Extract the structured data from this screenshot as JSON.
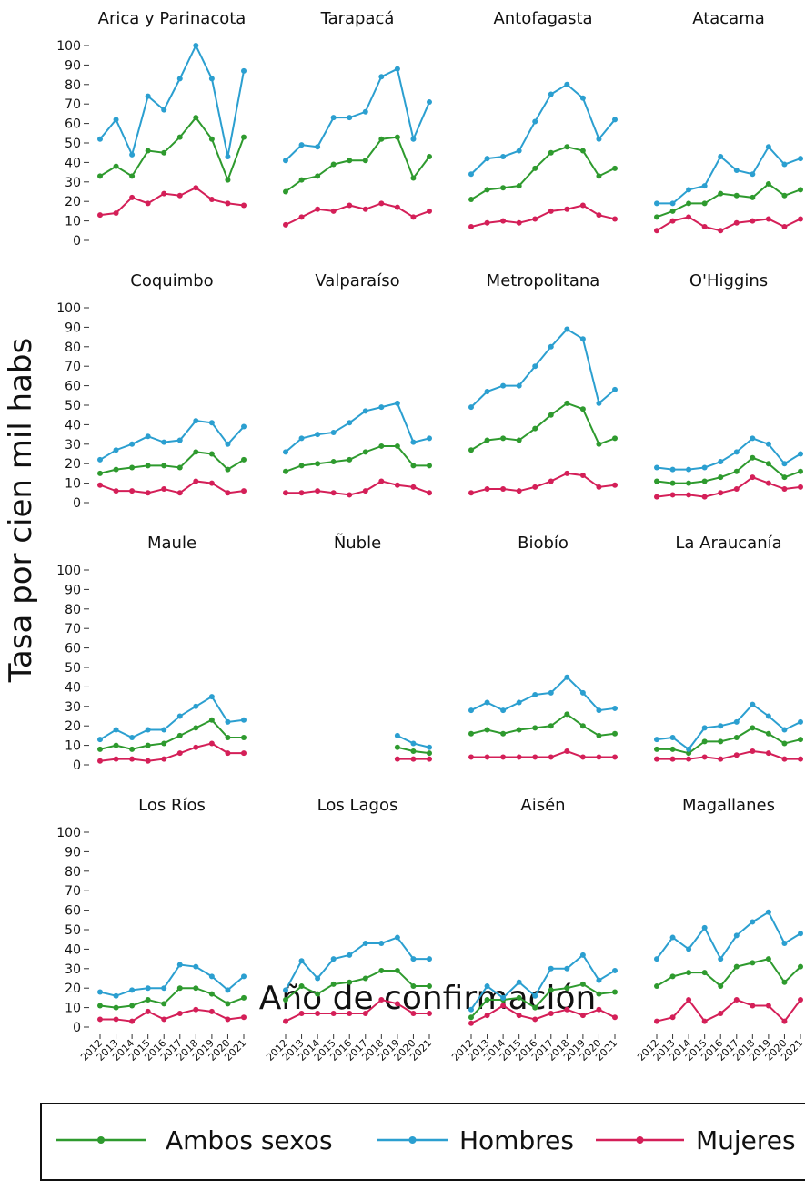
{
  "y_label": "Tasa por cien mil habs",
  "x_label": "Año de confirmación",
  "chart_data": [
    {
      "type": "line",
      "title": "Arica y Parinacota",
      "x": [
        2012,
        2013,
        2014,
        2015,
        2016,
        2017,
        2018,
        2019,
        2020,
        2021
      ],
      "ylim": [
        0,
        100
      ],
      "yticks": [
        0,
        10,
        20,
        30,
        40,
        50,
        60,
        70,
        80,
        90,
        100
      ],
      "series": [
        {
          "name": "Ambos sexos",
          "color": "#2e9a2e",
          "values": [
            33,
            38,
            33,
            46,
            45,
            53,
            63,
            52,
            31,
            53
          ]
        },
        {
          "name": "Hombres",
          "color": "#2b9fd0",
          "values": [
            52,
            62,
            44,
            74,
            67,
            83,
            100,
            83,
            43,
            87
          ]
        },
        {
          "name": "Mujeres",
          "color": "#d41f58",
          "values": [
            13,
            14,
            22,
            19,
            24,
            23,
            27,
            21,
            19,
            18
          ]
        }
      ]
    },
    {
      "type": "line",
      "title": "Tarapacá",
      "x": [
        2012,
        2013,
        2014,
        2015,
        2016,
        2017,
        2018,
        2019,
        2020,
        2021
      ],
      "ylim": [
        0,
        100
      ],
      "series": [
        {
          "name": "Ambos sexos",
          "color": "#2e9a2e",
          "values": [
            25,
            31,
            33,
            39,
            41,
            41,
            52,
            53,
            32,
            43
          ]
        },
        {
          "name": "Hombres",
          "color": "#2b9fd0",
          "values": [
            41,
            49,
            48,
            63,
            63,
            66,
            84,
            88,
            52,
            71
          ]
        },
        {
          "name": "Mujeres",
          "color": "#d41f58",
          "values": [
            8,
            12,
            16,
            15,
            18,
            16,
            19,
            17,
            12,
            15
          ]
        }
      ]
    },
    {
      "type": "line",
      "title": "Antofagasta",
      "x": [
        2012,
        2013,
        2014,
        2015,
        2016,
        2017,
        2018,
        2019,
        2020,
        2021
      ],
      "ylim": [
        0,
        100
      ],
      "series": [
        {
          "name": "Ambos sexos",
          "color": "#2e9a2e",
          "values": [
            21,
            26,
            27,
            28,
            37,
            45,
            48,
            46,
            33,
            37
          ]
        },
        {
          "name": "Hombres",
          "color": "#2b9fd0",
          "values": [
            34,
            42,
            43,
            46,
            61,
            75,
            80,
            73,
            52,
            62
          ]
        },
        {
          "name": "Mujeres",
          "color": "#d41f58",
          "values": [
            7,
            9,
            10,
            9,
            11,
            15,
            16,
            18,
            13,
            11
          ]
        }
      ]
    },
    {
      "type": "line",
      "title": "Atacama",
      "x": [
        2012,
        2013,
        2014,
        2015,
        2016,
        2017,
        2018,
        2019,
        2020,
        2021
      ],
      "ylim": [
        0,
        100
      ],
      "series": [
        {
          "name": "Ambos sexos",
          "color": "#2e9a2e",
          "values": [
            12,
            15,
            19,
            19,
            24,
            23,
            22,
            29,
            23,
            26
          ]
        },
        {
          "name": "Hombres",
          "color": "#2b9fd0",
          "values": [
            19,
            19,
            26,
            28,
            43,
            36,
            34,
            48,
            39,
            42
          ]
        },
        {
          "name": "Mujeres",
          "color": "#d41f58",
          "values": [
            5,
            10,
            12,
            7,
            5,
            9,
            10,
            11,
            7,
            11
          ]
        }
      ]
    },
    {
      "type": "line",
      "title": "Coquimbo",
      "x": [
        2012,
        2013,
        2014,
        2015,
        2016,
        2017,
        2018,
        2019,
        2020,
        2021
      ],
      "ylim": [
        0,
        100
      ],
      "yticks": [
        0,
        10,
        20,
        30,
        40,
        50,
        60,
        70,
        80,
        90,
        100
      ],
      "series": [
        {
          "name": "Ambos sexos",
          "color": "#2e9a2e",
          "values": [
            15,
            17,
            18,
            19,
            19,
            18,
            26,
            25,
            17,
            22
          ]
        },
        {
          "name": "Hombres",
          "color": "#2b9fd0",
          "values": [
            22,
            27,
            30,
            34,
            31,
            32,
            42,
            41,
            30,
            39
          ]
        },
        {
          "name": "Mujeres",
          "color": "#d41f58",
          "values": [
            9,
            6,
            6,
            5,
            7,
            5,
            11,
            10,
            5,
            6
          ]
        }
      ]
    },
    {
      "type": "line",
      "title": "Valparaíso",
      "x": [
        2012,
        2013,
        2014,
        2015,
        2016,
        2017,
        2018,
        2019,
        2020,
        2021
      ],
      "ylim": [
        0,
        100
      ],
      "series": [
        {
          "name": "Ambos sexos",
          "color": "#2e9a2e",
          "values": [
            16,
            19,
            20,
            21,
            22,
            26,
            29,
            29,
            19,
            19
          ]
        },
        {
          "name": "Hombres",
          "color": "#2b9fd0",
          "values": [
            26,
            33,
            35,
            36,
            41,
            47,
            49,
            51,
            31,
            33
          ]
        },
        {
          "name": "Mujeres",
          "color": "#d41f58",
          "values": [
            5,
            5,
            6,
            5,
            4,
            6,
            11,
            9,
            8,
            5
          ]
        }
      ]
    },
    {
      "type": "line",
      "title": "Metropolitana",
      "x": [
        2012,
        2013,
        2014,
        2015,
        2016,
        2017,
        2018,
        2019,
        2020,
        2021
      ],
      "ylim": [
        0,
        100
      ],
      "series": [
        {
          "name": "Ambos sexos",
          "color": "#2e9a2e",
          "values": [
            27,
            32,
            33,
            32,
            38,
            45,
            51,
            48,
            30,
            33
          ]
        },
        {
          "name": "Hombres",
          "color": "#2b9fd0",
          "values": [
            49,
            57,
            60,
            60,
            70,
            80,
            89,
            84,
            51,
            58
          ]
        },
        {
          "name": "Mujeres",
          "color": "#d41f58",
          "values": [
            5,
            7,
            7,
            6,
            8,
            11,
            15,
            14,
            8,
            9
          ]
        }
      ]
    },
    {
      "type": "line",
      "title": "O'Higgins",
      "x": [
        2012,
        2013,
        2014,
        2015,
        2016,
        2017,
        2018,
        2019,
        2020,
        2021
      ],
      "ylim": [
        0,
        100
      ],
      "series": [
        {
          "name": "Ambos sexos",
          "color": "#2e9a2e",
          "values": [
            11,
            10,
            10,
            11,
            13,
            16,
            23,
            20,
            13,
            16
          ]
        },
        {
          "name": "Hombres",
          "color": "#2b9fd0",
          "values": [
            18,
            17,
            17,
            18,
            21,
            26,
            33,
            30,
            20,
            25
          ]
        },
        {
          "name": "Mujeres",
          "color": "#d41f58",
          "values": [
            3,
            4,
            4,
            3,
            5,
            7,
            13,
            10,
            7,
            8
          ]
        }
      ]
    },
    {
      "type": "line",
      "title": "Maule",
      "x": [
        2012,
        2013,
        2014,
        2015,
        2016,
        2017,
        2018,
        2019,
        2020,
        2021
      ],
      "ylim": [
        0,
        100
      ],
      "yticks": [
        0,
        10,
        20,
        30,
        40,
        50,
        60,
        70,
        80,
        90,
        100
      ],
      "series": [
        {
          "name": "Ambos sexos",
          "color": "#2e9a2e",
          "values": [
            8,
            10,
            8,
            10,
            11,
            15,
            19,
            23,
            14,
            14
          ]
        },
        {
          "name": "Hombres",
          "color": "#2b9fd0",
          "values": [
            13,
            18,
            14,
            18,
            18,
            25,
            30,
            35,
            22,
            23
          ]
        },
        {
          "name": "Mujeres",
          "color": "#d41f58",
          "values": [
            2,
            3,
            3,
            2,
            3,
            6,
            9,
            11,
            6,
            6
          ]
        }
      ]
    },
    {
      "type": "line",
      "title": "Ñuble",
      "x": [
        2012,
        2013,
        2014,
        2015,
        2016,
        2017,
        2018,
        2019,
        2020,
        2021
      ],
      "ylim": [
        0,
        100
      ],
      "series": [
        {
          "name": "Ambos sexos",
          "color": "#2e9a2e",
          "values": [
            null,
            null,
            null,
            null,
            null,
            null,
            null,
            9,
            7,
            6
          ]
        },
        {
          "name": "Hombres",
          "color": "#2b9fd0",
          "values": [
            null,
            null,
            null,
            null,
            null,
            null,
            null,
            15,
            11,
            9
          ]
        },
        {
          "name": "Mujeres",
          "color": "#d41f58",
          "values": [
            null,
            null,
            null,
            null,
            null,
            null,
            null,
            3,
            3,
            3
          ]
        }
      ]
    },
    {
      "type": "line",
      "title": "Biobío",
      "x": [
        2012,
        2013,
        2014,
        2015,
        2016,
        2017,
        2018,
        2019,
        2020,
        2021
      ],
      "ylim": [
        0,
        100
      ],
      "series": [
        {
          "name": "Ambos sexos",
          "color": "#2e9a2e",
          "values": [
            16,
            18,
            16,
            18,
            19,
            20,
            26,
            20,
            15,
            16
          ]
        },
        {
          "name": "Hombres",
          "color": "#2b9fd0",
          "values": [
            28,
            32,
            28,
            32,
            36,
            37,
            45,
            37,
            28,
            29
          ]
        },
        {
          "name": "Mujeres",
          "color": "#d41f58",
          "values": [
            4,
            4,
            4,
            4,
            4,
            4,
            7,
            4,
            4,
            4
          ]
        }
      ]
    },
    {
      "type": "line",
      "title": "La Araucanía",
      "x": [
        2012,
        2013,
        2014,
        2015,
        2016,
        2017,
        2018,
        2019,
        2020,
        2021
      ],
      "ylim": [
        0,
        100
      ],
      "series": [
        {
          "name": "Ambos sexos",
          "color": "#2e9a2e",
          "values": [
            8,
            8,
            6,
            12,
            12,
            14,
            19,
            16,
            11,
            13
          ]
        },
        {
          "name": "Hombres",
          "color": "#2b9fd0",
          "values": [
            13,
            14,
            8,
            19,
            20,
            22,
            31,
            25,
            18,
            22
          ]
        },
        {
          "name": "Mujeres",
          "color": "#d41f58",
          "values": [
            3,
            3,
            3,
            4,
            3,
            5,
            7,
            6,
            3,
            3
          ]
        }
      ]
    },
    {
      "type": "line",
      "title": "Los Ríos",
      "x": [
        2012,
        2013,
        2014,
        2015,
        2016,
        2017,
        2018,
        2019,
        2020,
        2021
      ],
      "ylim": [
        0,
        100
      ],
      "yticks": [
        0,
        10,
        20,
        30,
        40,
        50,
        60,
        70,
        80,
        90,
        100
      ],
      "series": [
        {
          "name": "Ambos sexos",
          "color": "#2e9a2e",
          "values": [
            11,
            10,
            11,
            14,
            12,
            20,
            20,
            17,
            12,
            15
          ]
        },
        {
          "name": "Hombres",
          "color": "#2b9fd0",
          "values": [
            18,
            16,
            19,
            20,
            20,
            32,
            31,
            26,
            19,
            26
          ]
        },
        {
          "name": "Mujeres",
          "color": "#d41f58",
          "values": [
            4,
            4,
            3,
            8,
            4,
            7,
            9,
            8,
            4,
            5
          ]
        }
      ]
    },
    {
      "type": "line",
      "title": "Los Lagos",
      "x": [
        2012,
        2013,
        2014,
        2015,
        2016,
        2017,
        2018,
        2019,
        2020,
        2021
      ],
      "ylim": [
        0,
        100
      ],
      "series": [
        {
          "name": "Ambos sexos",
          "color": "#2e9a2e",
          "values": [
            14,
            21,
            17,
            22,
            23,
            25,
            29,
            29,
            21,
            21
          ]
        },
        {
          "name": "Hombres",
          "color": "#2b9fd0",
          "values": [
            19,
            34,
            25,
            35,
            37,
            43,
            43,
            46,
            35,
            35
          ]
        },
        {
          "name": "Mujeres",
          "color": "#d41f58",
          "values": [
            3,
            7,
            7,
            7,
            7,
            7,
            14,
            12,
            7,
            7
          ]
        }
      ]
    },
    {
      "type": "line",
      "title": "Aisén",
      "x": [
        2012,
        2013,
        2014,
        2015,
        2016,
        2017,
        2018,
        2019,
        2020,
        2021
      ],
      "ylim": [
        0,
        100
      ],
      "series": [
        {
          "name": "Ambos sexos",
          "color": "#2e9a2e",
          "values": [
            5,
            14,
            14,
            15,
            10,
            19,
            20,
            22,
            17,
            18
          ]
        },
        {
          "name": "Hombres",
          "color": "#2b9fd0",
          "values": [
            9,
            21,
            15,
            23,
            16,
            30,
            30,
            37,
            24,
            29
          ]
        },
        {
          "name": "Mujeres",
          "color": "#d41f58",
          "values": [
            2,
            6,
            11,
            6,
            4,
            7,
            9,
            6,
            9,
            5
          ]
        }
      ]
    },
    {
      "type": "line",
      "title": "Magallanes",
      "x": [
        2012,
        2013,
        2014,
        2015,
        2016,
        2017,
        2018,
        2019,
        2020,
        2021
      ],
      "ylim": [
        0,
        100
      ],
      "series": [
        {
          "name": "Ambos sexos",
          "color": "#2e9a2e",
          "values": [
            21,
            26,
            28,
            28,
            21,
            31,
            33,
            35,
            23,
            31
          ]
        },
        {
          "name": "Hombres",
          "color": "#2b9fd0",
          "values": [
            35,
            46,
            40,
            51,
            35,
            47,
            54,
            59,
            43,
            48
          ]
        },
        {
          "name": "Mujeres",
          "color": "#d41f58",
          "values": [
            3,
            5,
            14,
            3,
            7,
            14,
            11,
            11,
            3,
            14
          ]
        }
      ]
    }
  ]
}
